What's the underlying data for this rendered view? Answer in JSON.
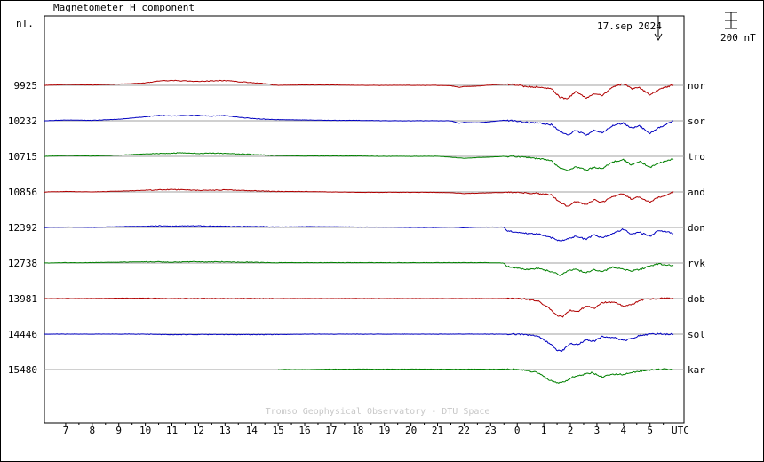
{
  "chart_data": {
    "type": "line",
    "title": "Magnetometer H component",
    "unit_label": "nT.",
    "date_label": "17.sep 2024",
    "scale_bar_label": "200 nT",
    "watermark": "Tromso Geophysical Observatory - DTU Space",
    "xlabel": "UTC",
    "x_tick_labels": [
      "7",
      "8",
      "9",
      "10",
      "11",
      "12",
      "13",
      "14",
      "15",
      "16",
      "17",
      "18",
      "19",
      "20",
      "21",
      "22",
      "23",
      "0",
      "1",
      "2",
      "3",
      "4",
      "5"
    ],
    "x_range_hours": [
      6.0,
      30.0
    ],
    "scale_nT": 200,
    "grid": true,
    "series": [
      {
        "name": "nor",
        "baseline": 9925,
        "color": "#b00000",
        "start": 6.2,
        "x": [
          6.2,
          7,
          8,
          9,
          10,
          10.5,
          11,
          11.5,
          12,
          12.5,
          13,
          13.5,
          14,
          14.5,
          15,
          16,
          17,
          18,
          19,
          20,
          21,
          21.5,
          21.8,
          22,
          22.5,
          23,
          23.5,
          24,
          24.3,
          24.8,
          25.3,
          25.6,
          25.9,
          26.2,
          26.6,
          26.9,
          27.2,
          27.6,
          28,
          28.3,
          28.6,
          29,
          29.3,
          29.6,
          29.9
        ],
        "y": [
          0,
          10,
          5,
          15,
          30,
          55,
          60,
          55,
          50,
          55,
          60,
          45,
          35,
          20,
          0,
          5,
          5,
          0,
          0,
          0,
          0,
          -5,
          -25,
          -15,
          -10,
          5,
          15,
          5,
          -15,
          -20,
          -40,
          -150,
          -170,
          -80,
          -160,
          -100,
          -130,
          -20,
          20,
          -40,
          -30,
          -120,
          -60,
          -20,
          5
        ]
      },
      {
        "name": "sor",
        "baseline": 10232,
        "color": "#0000c0",
        "start": 6.2,
        "x": [
          6.2,
          7,
          8,
          9,
          10,
          10.5,
          11,
          11.5,
          12,
          12.5,
          13,
          13.5,
          14,
          14.5,
          15,
          16,
          17,
          18,
          19,
          20,
          21,
          21.5,
          21.8,
          22,
          22.5,
          23,
          23.5,
          24,
          24.3,
          24.8,
          25.3,
          25.6,
          25.9,
          26.2,
          26.6,
          26.9,
          27.2,
          27.6,
          28,
          28.3,
          28.6,
          29,
          29.3,
          29.6,
          29.9
        ],
        "y": [
          0,
          10,
          5,
          20,
          50,
          70,
          60,
          65,
          70,
          60,
          65,
          45,
          30,
          20,
          15,
          10,
          5,
          5,
          0,
          0,
          0,
          0,
          -30,
          -20,
          -25,
          -10,
          5,
          -5,
          -20,
          -30,
          -50,
          -130,
          -180,
          -120,
          -180,
          -120,
          -150,
          -60,
          -30,
          -90,
          -60,
          -160,
          -90,
          -50,
          0
        ]
      },
      {
        "name": "tro",
        "baseline": 10715,
        "color": "#008000",
        "start": 6.2,
        "x": [
          6.2,
          7,
          8,
          9,
          10,
          10.5,
          11,
          11.5,
          12,
          12.5,
          13,
          13.5,
          14,
          14.5,
          15,
          16,
          17,
          18,
          19,
          20,
          21,
          21.5,
          21.8,
          22,
          22.5,
          23,
          23.5,
          24,
          24.3,
          24.8,
          25.3,
          25.6,
          25.9,
          26.2,
          26.6,
          26.9,
          27.2,
          27.6,
          28,
          28.3,
          28.6,
          29,
          29.3,
          29.6,
          29.9
        ],
        "y": [
          0,
          10,
          5,
          15,
          30,
          35,
          40,
          45,
          35,
          40,
          35,
          30,
          25,
          15,
          10,
          5,
          5,
          5,
          0,
          0,
          0,
          -10,
          -20,
          -25,
          -15,
          -10,
          0,
          -5,
          -15,
          -25,
          -60,
          -150,
          -180,
          -130,
          -170,
          -140,
          -150,
          -70,
          -40,
          -110,
          -60,
          -140,
          -90,
          -60,
          -30
        ]
      },
      {
        "name": "and",
        "baseline": 10856,
        "color": "#b00000",
        "start": 6.2,
        "x": [
          6.2,
          7,
          8,
          9,
          10,
          10.5,
          11,
          11.5,
          12,
          12.5,
          13,
          13.5,
          14,
          14.5,
          15,
          16,
          17,
          18,
          19,
          20,
          21,
          21.5,
          21.8,
          22,
          22.5,
          23,
          23.5,
          24,
          24.3,
          24.8,
          25.3,
          25.6,
          25.9,
          26.2,
          26.6,
          26.9,
          27.2,
          27.6,
          28,
          28.3,
          28.6,
          29,
          29.3,
          29.6,
          29.9
        ],
        "y": [
          0,
          5,
          0,
          10,
          20,
          25,
          30,
          25,
          20,
          20,
          25,
          20,
          15,
          10,
          5,
          5,
          0,
          -5,
          -5,
          -5,
          -5,
          -10,
          -15,
          -20,
          -15,
          -10,
          -5,
          -5,
          -10,
          -20,
          -40,
          -130,
          -180,
          -120,
          -160,
          -100,
          -130,
          -60,
          -20,
          -90,
          -60,
          -130,
          -70,
          -40,
          0
        ]
      },
      {
        "name": "don",
        "baseline": 12392,
        "color": "#0000c0",
        "start": 6.2,
        "x": [
          6.2,
          7,
          8,
          9,
          10,
          10.5,
          11,
          11.5,
          12,
          12.5,
          13,
          13.5,
          14,
          14.5,
          15,
          16,
          17,
          18,
          19,
          20,
          21,
          21.5,
          21.8,
          22,
          22.5,
          23,
          23.5,
          23.6,
          24,
          24.3,
          24.8,
          25.3,
          25.6,
          25.9,
          26.2,
          26.6,
          26.9,
          27.2,
          27.6,
          28,
          28.3,
          28.6,
          29,
          29.3,
          29.6,
          29.9
        ],
        "y": [
          0,
          5,
          0,
          10,
          15,
          20,
          15,
          20,
          20,
          15,
          15,
          10,
          15,
          10,
          5,
          10,
          10,
          5,
          5,
          0,
          0,
          5,
          0,
          -5,
          5,
          5,
          5,
          -40,
          -60,
          -70,
          -80,
          -130,
          -170,
          -140,
          -110,
          -150,
          -90,
          -130,
          -80,
          -20,
          -90,
          -60,
          -110,
          -40,
          -50,
          -80
        ]
      },
      {
        "name": "rvk",
        "baseline": 12738,
        "color": "#008000",
        "start": 6.2,
        "x": [
          6.2,
          7,
          8,
          9,
          10,
          10.5,
          11,
          11.5,
          12,
          12.5,
          13,
          13.5,
          14,
          14.5,
          15,
          16,
          17,
          18,
          19,
          20,
          21,
          21.5,
          22,
          22.5,
          23,
          23.5,
          23.6,
          24,
          24.3,
          24.8,
          25.3,
          25.6,
          25.9,
          26.2,
          26.6,
          26.9,
          27.2,
          27.6,
          28,
          28.3,
          28.6,
          29,
          29.3,
          29.6,
          29.9
        ],
        "y": [
          0,
          5,
          5,
          10,
          15,
          15,
          10,
          15,
          15,
          15,
          15,
          10,
          10,
          5,
          5,
          5,
          5,
          5,
          5,
          5,
          5,
          5,
          5,
          5,
          5,
          0,
          -40,
          -60,
          -80,
          -70,
          -110,
          -150,
          -100,
          -80,
          -120,
          -80,
          -110,
          -50,
          -80,
          -100,
          -80,
          -40,
          -10,
          -20,
          -30
        ]
      },
      {
        "name": "dob",
        "baseline": 13981,
        "color": "#b00000",
        "start": 6.2,
        "x": [
          6.2,
          7,
          8,
          9,
          10,
          11,
          12,
          13,
          14,
          15,
          16,
          17,
          18,
          19,
          20,
          21,
          22,
          23,
          23.5,
          23.9,
          24.3,
          24.8,
          25.2,
          25.5,
          25.7,
          26,
          26.3,
          26.6,
          26.9,
          27.2,
          27.6,
          28,
          28.3,
          28.6,
          29,
          29.3,
          29.6,
          29.9
        ],
        "y": [
          0,
          0,
          0,
          5,
          5,
          0,
          0,
          0,
          0,
          0,
          0,
          0,
          0,
          0,
          0,
          0,
          0,
          0,
          0,
          0,
          -5,
          -30,
          -120,
          -210,
          -230,
          -150,
          -160,
          -90,
          -120,
          -50,
          -40,
          -90,
          -80,
          -20,
          -5,
          0,
          5,
          0
        ]
      },
      {
        "name": "sol",
        "baseline": 14446,
        "color": "#0000c0",
        "start": 6.2,
        "x": [
          6.2,
          7,
          8,
          9,
          10,
          11,
          12,
          13,
          14,
          15,
          16,
          17,
          18,
          19,
          20,
          21,
          22,
          23,
          23.5,
          23.9,
          24.3,
          24.8,
          25.2,
          25.5,
          25.7,
          26,
          26.3,
          26.6,
          26.9,
          27.2,
          27.6,
          28,
          28.3,
          28.6,
          29,
          29.3,
          29.6,
          29.9
        ],
        "y": [
          0,
          0,
          0,
          0,
          0,
          -5,
          -5,
          -5,
          -5,
          -5,
          0,
          0,
          0,
          0,
          0,
          0,
          0,
          0,
          0,
          0,
          -5,
          -30,
          -110,
          -200,
          -210,
          -120,
          -130,
          -70,
          -90,
          -30,
          -40,
          -80,
          -60,
          -15,
          0,
          5,
          0,
          0
        ]
      },
      {
        "name": "kar",
        "baseline": 15480,
        "color": "#008000",
        "start": 15.0,
        "x": [
          15,
          16,
          17,
          18,
          19,
          20,
          21,
          22,
          23,
          23.5,
          24,
          24.3,
          24.8,
          25.2,
          25.5,
          25.8,
          26.1,
          26.4,
          26.8,
          27.2,
          27.6,
          28,
          28.3,
          28.6,
          29,
          29.3,
          29.6,
          29.9
        ],
        "y": [
          0,
          0,
          5,
          5,
          5,
          5,
          5,
          5,
          5,
          5,
          0,
          -10,
          -40,
          -130,
          -170,
          -150,
          -90,
          -70,
          -40,
          -90,
          -60,
          -60,
          -40,
          -20,
          -5,
          0,
          5,
          0
        ]
      }
    ]
  }
}
